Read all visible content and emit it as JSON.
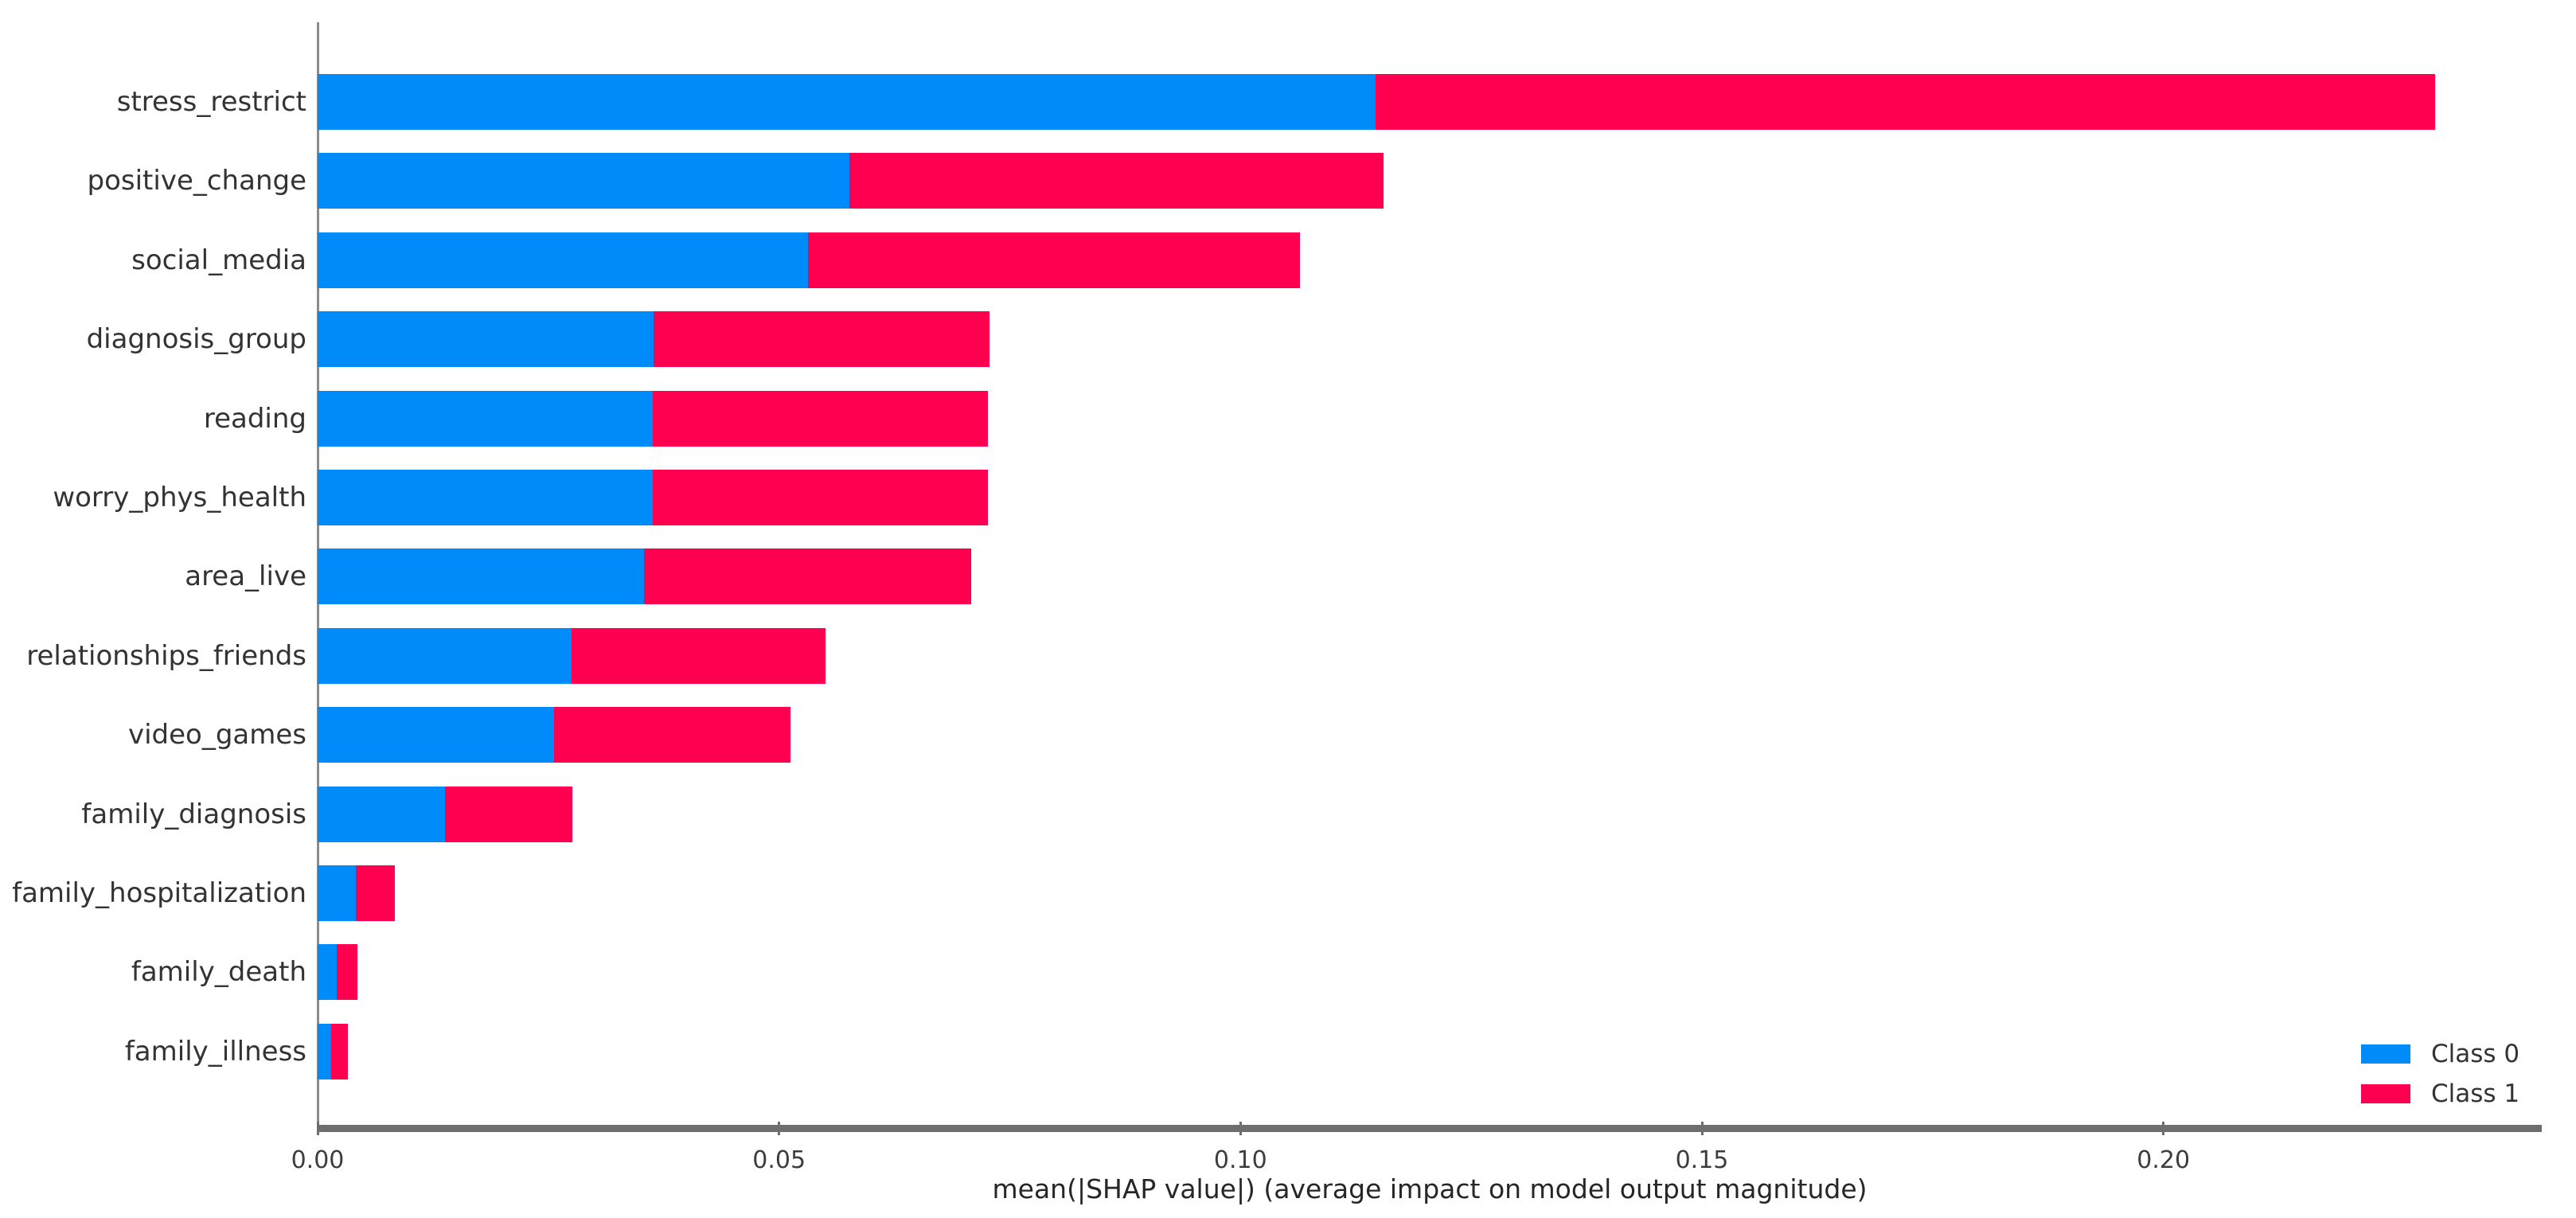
{
  "chart_data": {
    "type": "bar",
    "orientation": "horizontal",
    "stacked": true,
    "title": "",
    "xlabel": "mean(|SHAP value|) (average impact on model output magnitude)",
    "ylabel": "",
    "grid": false,
    "legend_position": "lower right",
    "xlim": [
      0,
      0.241
    ],
    "x_ticks": [
      0.0,
      0.05,
      0.1,
      0.15,
      0.2
    ],
    "x_tick_labels": [
      "0.00",
      "0.05",
      "0.10",
      "0.15",
      "0.20"
    ],
    "categories": [
      "stress_restrict",
      "positive_change",
      "social_media",
      "diagnosis_group",
      "reading",
      "worry_phys_health",
      "area_live",
      "relationships_friends",
      "video_games",
      "family_diagnosis",
      "family_hospitalization",
      "family_death",
      "family_illness"
    ],
    "series": [
      {
        "name": "Class 0",
        "color": "#008bfb",
        "values": [
          0.1146,
          0.0576,
          0.0531,
          0.0364,
          0.0363,
          0.0363,
          0.0354,
          0.0275,
          0.0256,
          0.0138,
          0.0041,
          0.0021,
          0.0015
        ]
      },
      {
        "name": "Class 1",
        "color": "#ff0051",
        "values": [
          0.1148,
          0.0579,
          0.0533,
          0.0364,
          0.0363,
          0.0363,
          0.0354,
          0.0275,
          0.0256,
          0.0138,
          0.0043,
          0.0022,
          0.0018
        ]
      }
    ]
  },
  "legend": {
    "items": [
      {
        "label": "Class 0",
        "color": "#008bfb"
      },
      {
        "label": "Class 1",
        "color": "#ff0051"
      }
    ]
  },
  "colors": {
    "class0": "#008bfb",
    "class1": "#ff0051",
    "x_spine": "#6e6e6e",
    "y_spine": "#8c8c8c",
    "text": "#333333"
  }
}
